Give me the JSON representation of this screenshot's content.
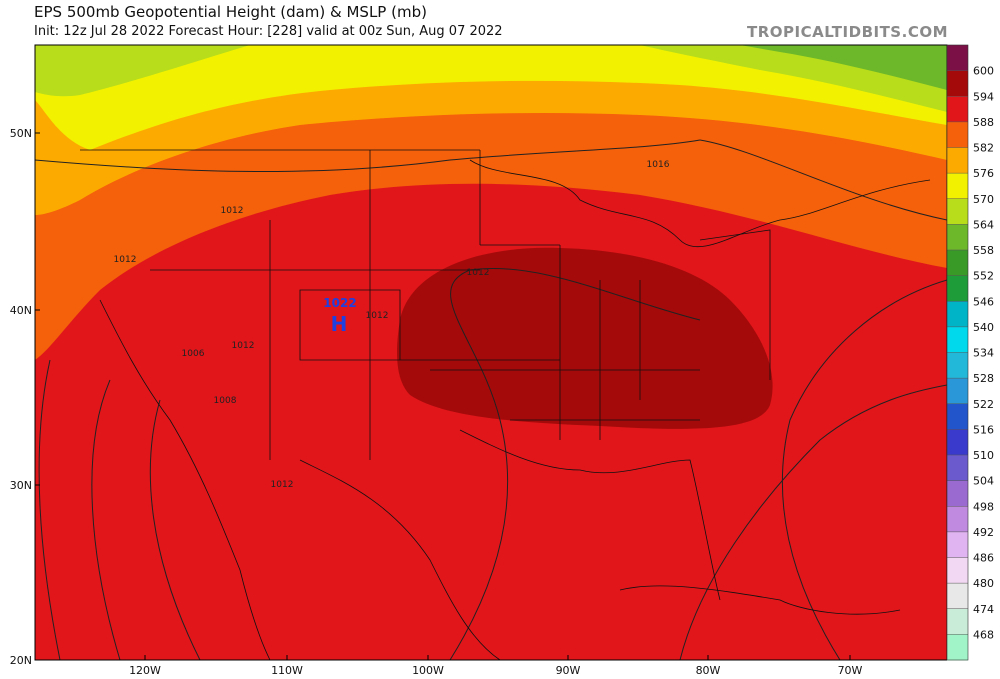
{
  "header": {
    "title": "EPS 500mb Geopotential Height (dam) & MSLP (mb)",
    "subtitle": "Init: 12z Jul 28 2022   Forecast Hour: [228]   valid at 00z Sun, Aug 07 2022",
    "site": "TROPICALTIDBITS.COM"
  },
  "map": {
    "lat_labels": [
      "50N",
      "40N",
      "30N",
      "20N"
    ],
    "lon_labels": [
      "120W",
      "110W",
      "100W",
      "90W",
      "80W",
      "70W"
    ],
    "contour_labels": [
      "1016",
      "1012",
      "1012",
      "1012",
      "1012",
      "1012",
      "1006",
      "1008",
      "1012"
    ],
    "high": {
      "pressure": "1022",
      "symbol": "H"
    }
  },
  "colorbar": {
    "labels": [
      600,
      594,
      588,
      582,
      576,
      570,
      564,
      558,
      552,
      546,
      540,
      534,
      528,
      522,
      516,
      510,
      504,
      498,
      492,
      486,
      480,
      474,
      468
    ],
    "colors": [
      "#7b1046",
      "#a50a0a",
      "#e0161b",
      "#f5600a",
      "#fdaa00",
      "#f2f200",
      "#b8dd1a",
      "#6cb82a",
      "#3a9a28",
      "#1f9c3a",
      "#00b4c8",
      "#00d8ec",
      "#22b8da",
      "#2a98d8",
      "#2255cc",
      "#3a3acc",
      "#6a5acd",
      "#9a6ad0",
      "#c08ae0",
      "#e0b4f0",
      "#f3d8f3",
      "#e8e8e8",
      "#c8ecd8",
      "#a0f4c8"
    ]
  }
}
